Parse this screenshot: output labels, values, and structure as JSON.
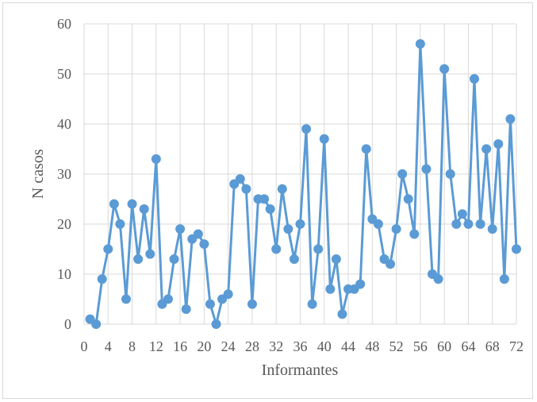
{
  "chart_data": {
    "type": "line",
    "title": "",
    "xlabel": "Informantes",
    "ylabel": "N casos",
    "xlim": [
      0,
      72
    ],
    "ylim": [
      0,
      60
    ],
    "xticks": [
      0,
      4,
      8,
      12,
      16,
      20,
      24,
      28,
      32,
      36,
      40,
      44,
      48,
      52,
      56,
      60,
      64,
      68,
      72
    ],
    "yticks": [
      0,
      10,
      20,
      30,
      40,
      50,
      60
    ],
    "grid": "vertical and horizontal major gridlines",
    "marker": "circle",
    "color": "#5b9bd5",
    "x": [
      1,
      2,
      3,
      4,
      5,
      6,
      7,
      8,
      9,
      10,
      11,
      12,
      13,
      14,
      15,
      16,
      17,
      18,
      19,
      20,
      21,
      22,
      23,
      24,
      25,
      26,
      27,
      28,
      29,
      30,
      31,
      32,
      33,
      34,
      35,
      36,
      37,
      38,
      39,
      40,
      41,
      42,
      43,
      44,
      45,
      46,
      47,
      48,
      49,
      50,
      51,
      52,
      53,
      54,
      55,
      56,
      57,
      58,
      59,
      60,
      61,
      62,
      63,
      64,
      65,
      66,
      67,
      68,
      69,
      70,
      71,
      72
    ],
    "values": [
      1,
      0,
      9,
      15,
      24,
      20,
      5,
      24,
      13,
      23,
      14,
      33,
      4,
      5,
      13,
      19,
      3,
      17,
      18,
      16,
      4,
      0,
      5,
      6,
      28,
      29,
      27,
      4,
      25,
      25,
      23,
      15,
      27,
      19,
      13,
      20,
      39,
      4,
      15,
      37,
      7,
      13,
      2,
      7,
      7,
      8,
      35,
      21,
      20,
      13,
      12,
      19,
      30,
      25,
      18,
      56,
      31,
      10,
      9,
      51,
      30,
      20,
      22,
      20,
      49,
      20,
      35,
      19,
      36,
      9,
      41,
      15
    ]
  }
}
